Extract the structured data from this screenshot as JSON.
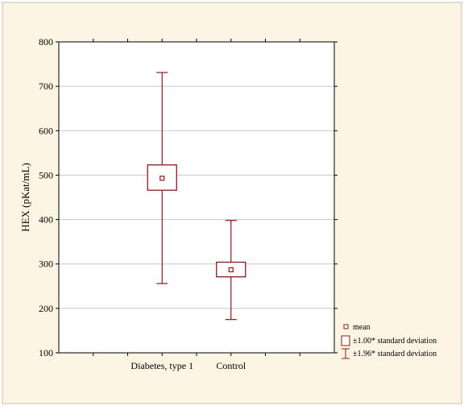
{
  "colors": {
    "panel_bg": "#fdf5e3",
    "panel_border": "#c8c0a8",
    "plot_bg": "#ffffff",
    "grid": "#c8c8c8",
    "box": "#8b1a1a"
  },
  "chart_data": {
    "type": "box",
    "ylabel": "HEX (pKat/mL)",
    "xlabel": "",
    "ylim": [
      100,
      800
    ],
    "yticks": [
      "100",
      "200",
      "300",
      "400",
      "500",
      "600",
      "700",
      "800"
    ],
    "grid": true,
    "categories": [
      "Diabetes, type 1",
      "Control"
    ],
    "series": [
      {
        "category": "Diabetes, type 1",
        "mean": 493,
        "sd_low": 466,
        "sd_high": 523,
        "ci_low": 256,
        "ci_high": 731
      },
      {
        "category": "Control",
        "mean": 287,
        "sd_low": 271,
        "sd_high": 304,
        "ci_low": 175,
        "ci_high": 398
      }
    ],
    "legend": {
      "position": "bottom-right",
      "entries": [
        "mean",
        "±1.00* standard deviation",
        "±1.96* standard deviation"
      ]
    }
  }
}
